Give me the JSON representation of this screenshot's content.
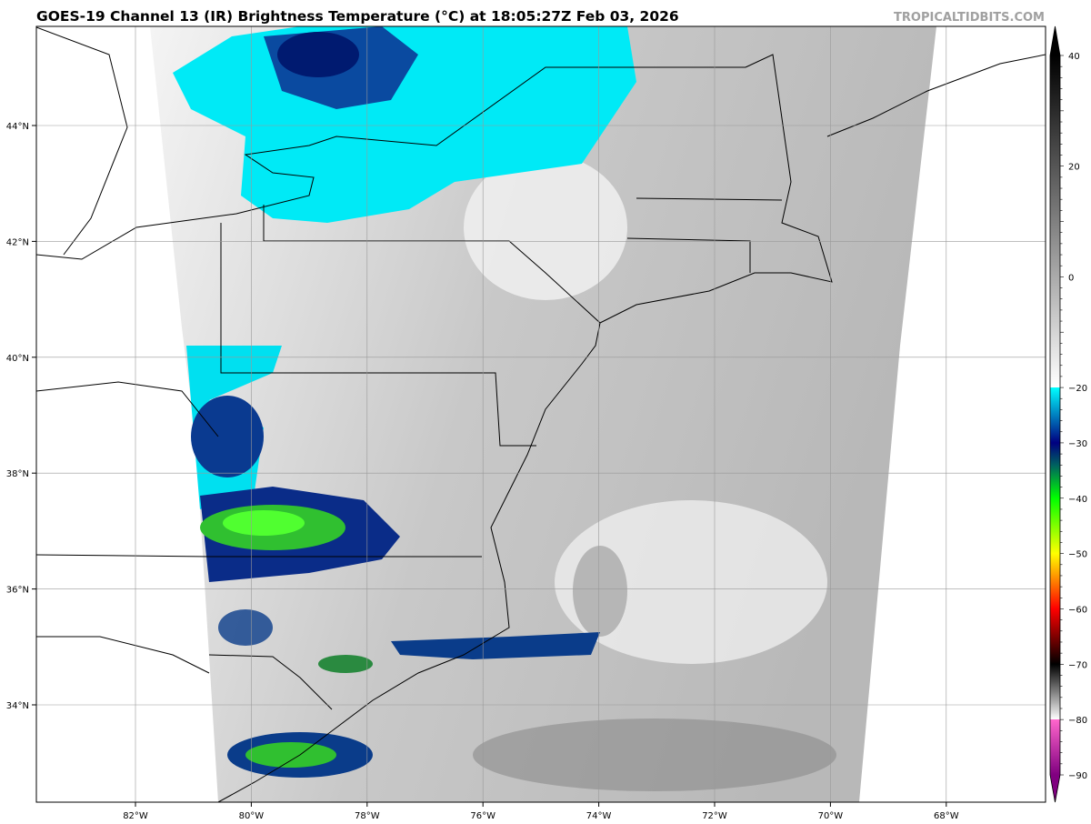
{
  "title": "GOES-19 Channel 13 (IR) Brightness Temperature (°C) at 18:05:27Z Feb 03, 2026",
  "credit": "TROPICALTIDBITS.COM",
  "map": {
    "longitude_labels": [
      "82°W",
      "80°W",
      "78°W",
      "76°W",
      "74°W",
      "72°W",
      "70°W",
      "68°W"
    ],
    "latitude_labels": [
      "44°N",
      "42°N",
      "40°N",
      "38°N",
      "36°N",
      "34°N"
    ]
  },
  "colorbar": {
    "range": [
      -90,
      40
    ],
    "tick_values": [
      40,
      20,
      0,
      -20,
      -30,
      -40,
      -50,
      -60,
      -70,
      -80,
      -90
    ],
    "tick_labels": [
      "40",
      "20",
      "0",
      "−20",
      "−30",
      "−40",
      "−50",
      "−60",
      "−70",
      "−80",
      "−90"
    ],
    "extend": "both",
    "color_stops": [
      {
        "value": 40,
        "color": "#000000"
      },
      {
        "value": -20,
        "color": "#ffffff"
      },
      {
        "value": -20.01,
        "color": "#00ffff"
      },
      {
        "value": -30,
        "color": "#000080"
      },
      {
        "value": -34,
        "color": "#006060"
      },
      {
        "value": -40,
        "color": "#00ff00"
      },
      {
        "value": -50,
        "color": "#ffff00"
      },
      {
        "value": -55,
        "color": "#ff8000"
      },
      {
        "value": -60,
        "color": "#ff0000"
      },
      {
        "value": -70,
        "color": "#000000"
      },
      {
        "value": -80,
        "color": "#ffffff"
      },
      {
        "value": -80.01,
        "color": "#ff66cc"
      },
      {
        "value": -90,
        "color": "#800080"
      }
    ]
  }
}
